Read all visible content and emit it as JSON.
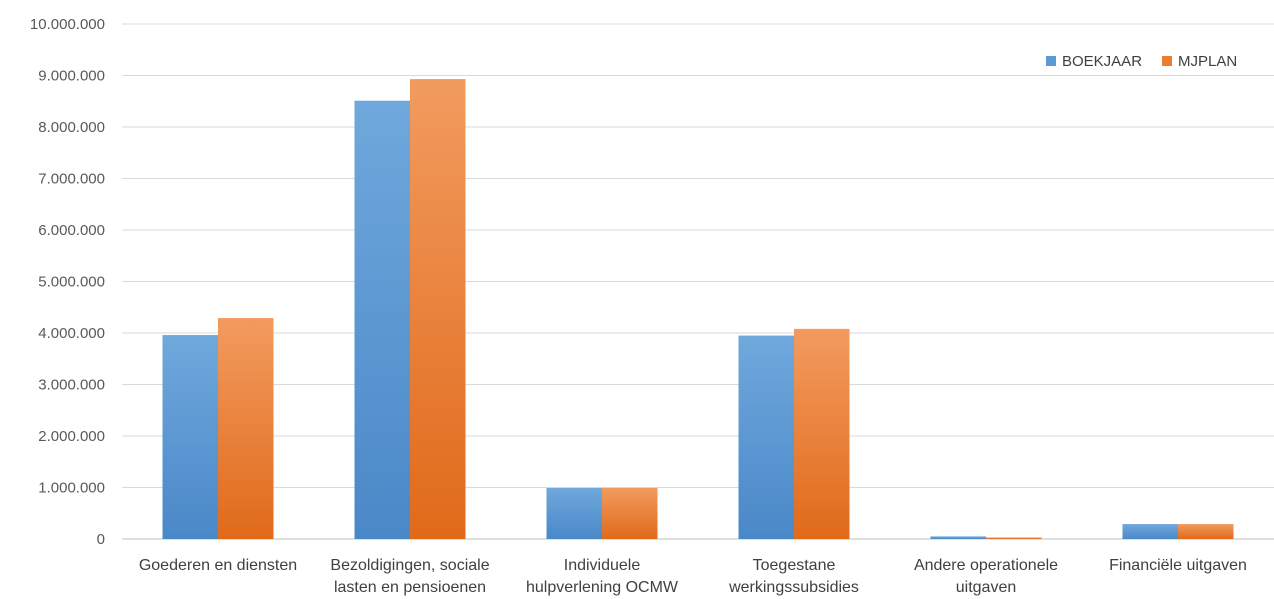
{
  "chart_data": {
    "type": "bar",
    "title": "",
    "xlabel": "",
    "ylabel": "",
    "ylim": [
      0,
      10000000
    ],
    "yticks": [
      "0",
      "1.000.000",
      "2.000.000",
      "3.000.000",
      "4.000.000",
      "5.000.000",
      "6.000.000",
      "7.000.000",
      "8.000.000",
      "9.000.000",
      "10.000.000"
    ],
    "grid": true,
    "legend_position": "top-right",
    "categories": [
      [
        "Goederen en diensten"
      ],
      [
        "Bezoldigingen, sociale",
        "lasten en pensioenen"
      ],
      [
        "Individuele",
        "hulpverlening OCMW"
      ],
      [
        "Toegestane",
        "werkingssubsidies"
      ],
      [
        "Andere operationele",
        "uitgaven"
      ],
      [
        "Financiële uitgaven"
      ]
    ],
    "series": [
      {
        "name": "BOEKJAAR",
        "color": "#5b9bd5",
        "color_light": "#6fa8dc",
        "color_dark": "#4a88c8",
        "values": [
          3960000,
          8510000,
          990000,
          3950000,
          50000,
          290000
        ]
      },
      {
        "name": "MJPLAN",
        "color": "#ed7d31",
        "color_light": "#f29b5f",
        "color_dark": "#e06a1a",
        "values": [
          4290000,
          8930000,
          990000,
          4080000,
          30000,
          290000
        ]
      }
    ]
  }
}
